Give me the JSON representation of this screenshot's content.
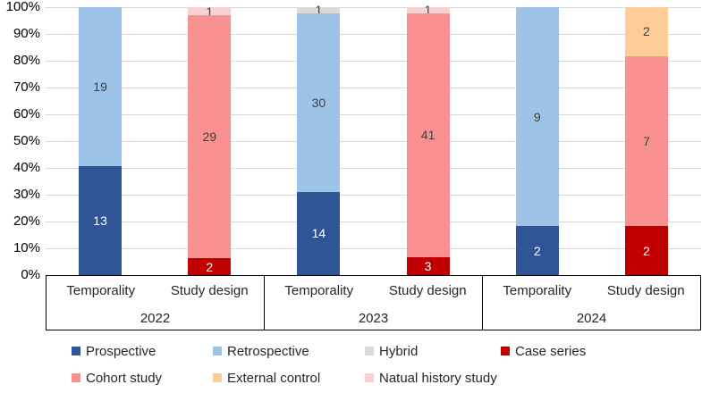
{
  "chart_data": {
    "type": "bar",
    "stacking": "percent",
    "title": "",
    "xlabel": "",
    "ylabel": "",
    "y_axis": {
      "min": 0,
      "max": 100,
      "tick_step": 10,
      "grid": true,
      "ticks": [
        "100%",
        "90%",
        "80%",
        "70%",
        "60%",
        "50%",
        "40%",
        "30%",
        "20%",
        "10%",
        "0%"
      ]
    },
    "series_colors": {
      "Prospective": "#2F5597",
      "Retrospective": "#9DC3E6",
      "Hybrid": "#D9D9D9",
      "Case series": "#C00000",
      "Cohort study": "#FA9191",
      "External control": "#FECC98",
      "Natual history study": "#FBD0D0"
    },
    "light_label_series": [
      "Prospective",
      "Case series"
    ],
    "groups": [
      {
        "year": "2022",
        "bars": [
          {
            "category": "Temporality",
            "segments": [
              {
                "series": "Prospective",
                "value": 13
              },
              {
                "series": "Retrospective",
                "value": 19
              }
            ]
          },
          {
            "category": "Study design",
            "segments": [
              {
                "series": "Case series",
                "value": 2
              },
              {
                "series": "Cohort study",
                "value": 29
              },
              {
                "series": "Natual history study",
                "value": 1
              }
            ]
          }
        ]
      },
      {
        "year": "2023",
        "bars": [
          {
            "category": "Temporality",
            "segments": [
              {
                "series": "Prospective",
                "value": 14
              },
              {
                "series": "Retrospective",
                "value": 30
              },
              {
                "series": "Hybrid",
                "value": 1
              }
            ]
          },
          {
            "category": "Study design",
            "segments": [
              {
                "series": "Case series",
                "value": 3
              },
              {
                "series": "Cohort study",
                "value": 41
              },
              {
                "series": "Natual history study",
                "value": 1
              }
            ]
          }
        ]
      },
      {
        "year": "2024",
        "bars": [
          {
            "category": "Temporality",
            "segments": [
              {
                "series": "Prospective",
                "value": 2
              },
              {
                "series": "Retrospective",
                "value": 9
              }
            ]
          },
          {
            "category": "Study design",
            "segments": [
              {
                "series": "Case series",
                "value": 2
              },
              {
                "series": "Cohort study",
                "value": 7
              },
              {
                "series": "External control",
                "value": 2
              }
            ]
          }
        ]
      }
    ],
    "legend": {
      "rows": [
        [
          {
            "label": "Prospective",
            "color": "#2F5597"
          },
          {
            "label": "Retrospective",
            "color": "#9DC3E6"
          },
          {
            "label": "Hybrid",
            "color": "#D9D9D9"
          },
          {
            "label": "Case series",
            "color": "#C00000"
          }
        ],
        [
          {
            "label": "Cohort study",
            "color": "#FA9191"
          },
          {
            "label": "External control",
            "color": "#FECC98"
          },
          {
            "label": "Natual history study",
            "color": "#FBD0D0"
          }
        ]
      ]
    },
    "layout_hints": {
      "grid_color": "#D9D9D9",
      "axis_box_color": "#000000",
      "legend_position": "bottom"
    }
  }
}
